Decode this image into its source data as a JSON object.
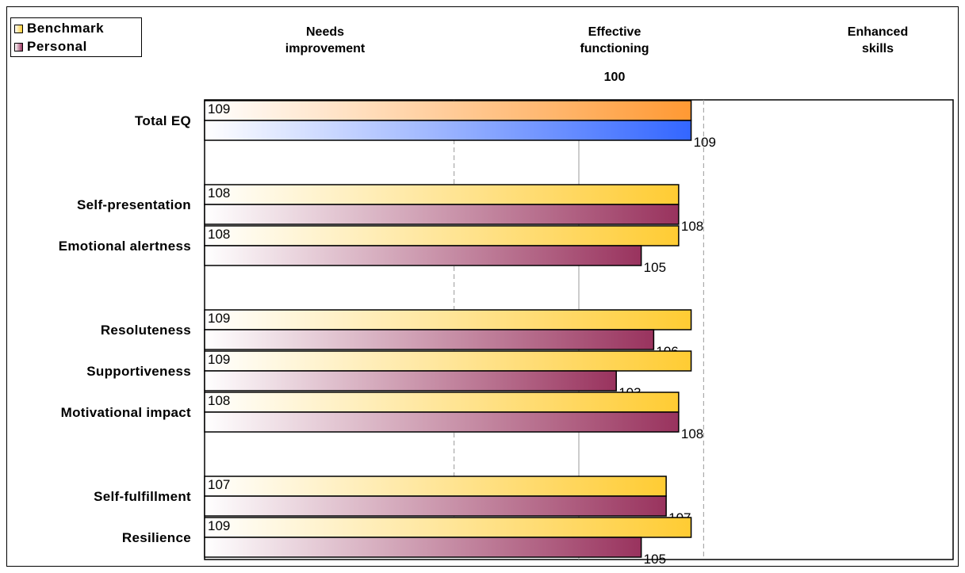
{
  "legend": {
    "benchmark": "Benchmark",
    "personal": "Personal"
  },
  "headers": {
    "needs_improvement": "Needs\nimprovement",
    "effective_functioning": "Effective\nfunctioning",
    "enhanced_skills": "Enhanced\nskills"
  },
  "reference_value": "100",
  "colors": {
    "benchmark": "#ffcc33",
    "personal": "#99335e",
    "total_benchmark": "#ff9933",
    "total_personal": "#3366ff"
  },
  "chart_data": {
    "type": "bar",
    "orientation": "horizontal",
    "categories": [
      "Total EQ",
      "Self-presentation",
      "Emotional alertness",
      "Resoluteness",
      "Supportiveness",
      "Motivational impact",
      "Self-fulfillment",
      "Resilience"
    ],
    "series": [
      {
        "name": "Benchmark",
        "values": [
          109,
          108,
          108,
          109,
          109,
          108,
          107,
          109
        ]
      },
      {
        "name": "Personal",
        "values": [
          109,
          108,
          105,
          106,
          103,
          108,
          107,
          105
        ]
      }
    ],
    "xlim": [
      70,
      130
    ],
    "reference_lines": [
      90,
      100,
      110
    ],
    "legend_position": "top-left",
    "grid": false
  }
}
